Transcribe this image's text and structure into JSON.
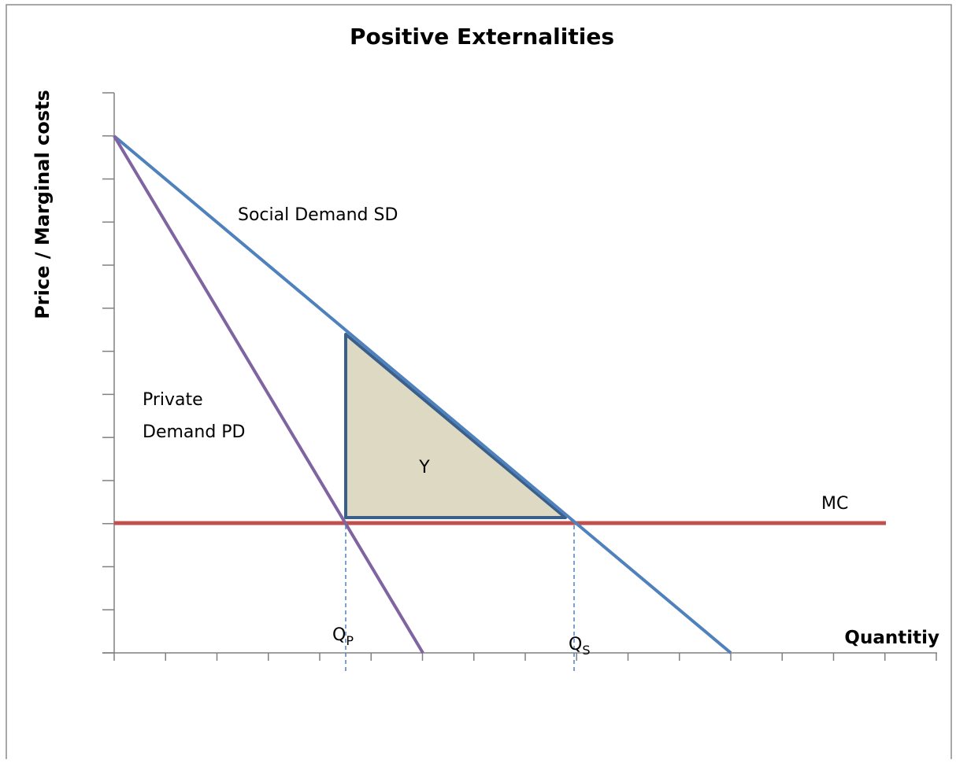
{
  "title": "Positive Externalities",
  "axes": {
    "y_label": "Price / Marginal costs",
    "x_label": "Quantitiy"
  },
  "curves": {
    "social_demand": "Social Demand SD",
    "private_demand": [
      "Private",
      "Demand PD"
    ],
    "marginal_cost": "MC"
  },
  "area_label": "Y",
  "quantities": {
    "private": {
      "main": "Q",
      "sub": "P"
    },
    "social": {
      "main": "Q",
      "sub": "S"
    }
  }
}
